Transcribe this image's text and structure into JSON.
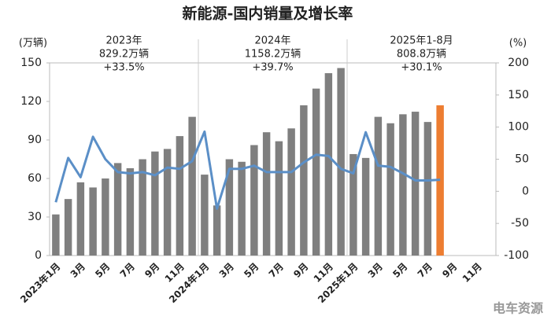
{
  "chart_data": {
    "type": "bar_line",
    "title": "新能源-国内销量及增长率",
    "y_label": "(万辆)",
    "y2_label": "(%)",
    "categories": [
      "2023年1月",
      null,
      "3月",
      null,
      "5月",
      null,
      "7月",
      null,
      "9月",
      null,
      "11月",
      null,
      "2024年1月",
      null,
      "3月",
      null,
      "5月",
      null,
      "7月",
      null,
      "9月",
      null,
      "11月",
      null,
      "2025年1月",
      null,
      "3月",
      null,
      "5月",
      null,
      "7月",
      null,
      "9月",
      null,
      "11月",
      null
    ],
    "ylim": [
      0,
      150
    ],
    "yticks": [
      0,
      30,
      60,
      90,
      120,
      150
    ],
    "y2lim": [
      -100,
      200
    ],
    "y2ticks": [
      -100,
      -50,
      0,
      50,
      100,
      150,
      200
    ],
    "series": [
      {
        "type": "bar",
        "color": "#7f7f7f",
        "colors": [
          "#7f7f7f",
          "#7f7f7f",
          "#7f7f7f",
          "#7f7f7f",
          "#7f7f7f",
          "#7f7f7f",
          "#7f7f7f",
          "#7f7f7f",
          "#7f7f7f",
          "#7f7f7f",
          "#7f7f7f",
          "#7f7f7f",
          "#7f7f7f",
          "#7f7f7f",
          "#7f7f7f",
          "#7f7f7f",
          "#7f7f7f",
          "#7f7f7f",
          "#7f7f7f",
          "#7f7f7f",
          "#7f7f7f",
          "#7f7f7f",
          "#7f7f7f",
          "#7f7f7f",
          "#7f7f7f",
          "#7f7f7f",
          "#7f7f7f",
          "#7f7f7f",
          "#7f7f7f",
          "#7f7f7f",
          "#7f7f7f",
          "#ed7d31",
          null,
          null,
          null,
          null
        ],
        "values": [
          32,
          44,
          57,
          53,
          60,
          72,
          68,
          75,
          81,
          83,
          93,
          108,
          63,
          39,
          75,
          73,
          86,
          96,
          89,
          99,
          117,
          130,
          142,
          146,
          79,
          76,
          108,
          103,
          110,
          112,
          104,
          117,
          null,
          null,
          null,
          null
        ]
      },
      {
        "type": "line",
        "axis": "y2",
        "color": "#5b8fc7",
        "values": [
          -17,
          52,
          22,
          85,
          50,
          30,
          28,
          30,
          25,
          37,
          35,
          47,
          93,
          -27,
          35,
          35,
          40,
          30,
          30,
          30,
          45,
          57,
          55,
          35,
          28,
          92,
          40,
          38,
          28,
          17,
          17,
          18,
          null,
          null,
          null,
          null
        ]
      }
    ],
    "annotations": [
      {
        "lines": [
          "2023年",
          "829.2万辆",
          "+33.5%"
        ]
      },
      {
        "lines": [
          "2024年",
          "1158.2万辆",
          "+39.7%"
        ]
      },
      {
        "lines": [
          "2025年1-8月",
          "808.8万辆",
          "+30.1%"
        ]
      }
    ],
    "watermark": "电车资源"
  }
}
